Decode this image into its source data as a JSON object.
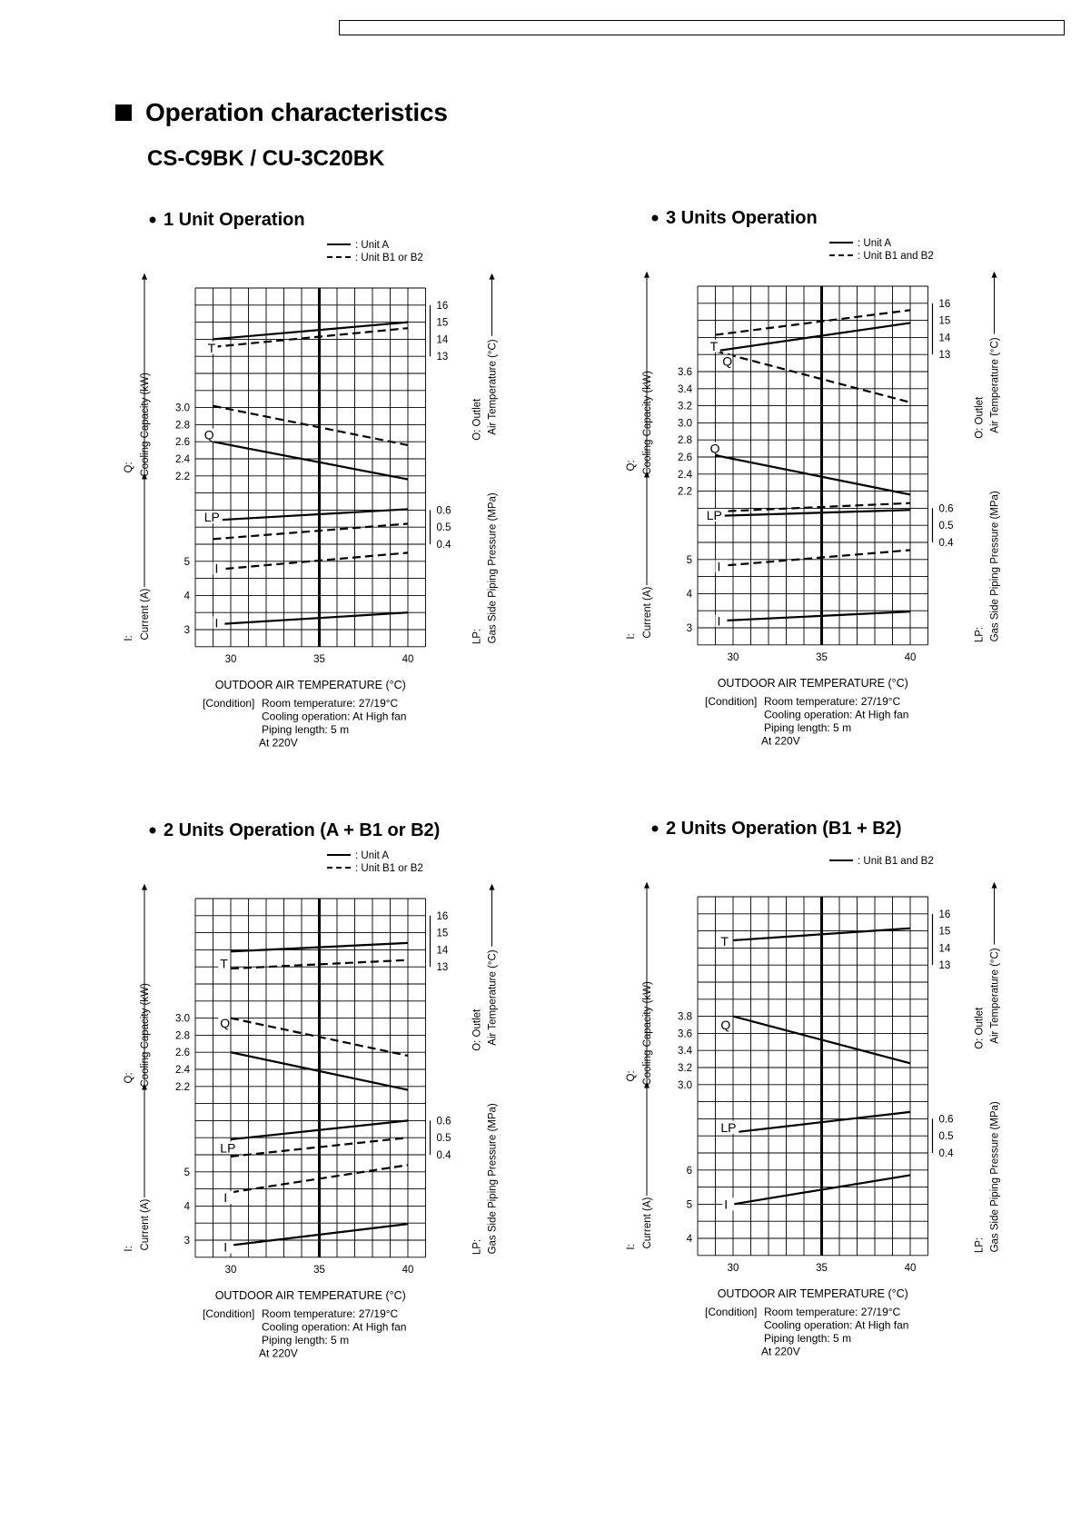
{
  "page": {
    "heading": "Operation characteristics",
    "model": "CS-C9BK / CU-3C20BK"
  },
  "panels": [
    {
      "title": "1 Unit Operation",
      "legend": [
        {
          "style": "solid",
          "label": ": Unit A"
        },
        {
          "style": "dashed",
          "label": ": Unit B1 or B2"
        }
      ],
      "x_label": "OUTDOOR  AIR TEMPERATURE (°C)",
      "x_ticks": [
        "30",
        "35",
        "40"
      ],
      "left_ticks": [
        {
          "text": "3.0",
          "row": 7
        },
        {
          "text": "2.8",
          "row": 8
        },
        {
          "text": "2.6",
          "row": 9
        },
        {
          "text": "2.4",
          "row": 10
        },
        {
          "text": "2.2",
          "row": 11
        },
        {
          "text": "5",
          "row": 16
        },
        {
          "text": "4",
          "row": 18
        },
        {
          "text": "3",
          "row": 20
        }
      ],
      "right_ticks": [
        {
          "text": "16",
          "row": 1
        },
        {
          "text": "15",
          "row": 2
        },
        {
          "text": "14",
          "row": 3
        },
        {
          "text": "13",
          "row": 4
        },
        {
          "text": "0.6",
          "row": 13
        },
        {
          "text": "0.5",
          "row": 14
        },
        {
          "text": "0.4",
          "row": 15
        }
      ],
      "curve_labels": [
        {
          "text": "T",
          "x": 28.7,
          "row": 3.5
        },
        {
          "text": "Q",
          "x": 28.5,
          "row": 8.6
        },
        {
          "text": "LP",
          "x": 28.5,
          "row": 13.4
        },
        {
          "text": "I",
          "x": 29.1,
          "row": 16.4
        },
        {
          "text": "I",
          "x": 29.1,
          "row": 19.6
        }
      ],
      "chart_data": {
        "type": "line",
        "x": [
          29,
          40
        ],
        "xlim": [
          28,
          41
        ],
        "series": [
          {
            "name": "T - Unit A",
            "style": "solid",
            "values": [
              14.3,
              15.0
            ]
          },
          {
            "name": "T - Unit B1 or B2",
            "style": "dashed",
            "values": [
              13.6,
              14.6
            ]
          },
          {
            "name": "Q - Unit A",
            "style": "solid",
            "values": [
              2.6,
              2.18
            ]
          },
          {
            "name": "Q - Unit B1 or B2",
            "style": "dashed",
            "values": [
              3.03,
              2.57
            ]
          },
          {
            "name": "LP - Unit A",
            "style": "solid",
            "values": [
              0.54,
              0.6
            ]
          },
          {
            "name": "LP - Unit B1 or B2",
            "style": "dashed",
            "values": [
              0.43,
              0.52
            ]
          },
          {
            "name": "I - Unit A",
            "style": "solid",
            "values": [
              3.35,
              3.77
            ]
          },
          {
            "name": "I - Unit B1 or B2",
            "style": "dashed",
            "values": [
              4.75,
              5.25
            ]
          }
        ],
        "paths": [
          {
            "style": "solid",
            "r0": 3.0,
            "r1": 2.0
          },
          {
            "style": "dashed",
            "r0": 3.45,
            "r1": 2.35
          },
          {
            "style": "solid",
            "r0": 9.0,
            "r1": 11.2
          },
          {
            "style": "dashed",
            "r0": 6.9,
            "r1": 9.2
          },
          {
            "style": "solid",
            "r0": 13.6,
            "r1": 12.95
          },
          {
            "style": "dashed",
            "r0": 14.7,
            "r1": 13.8
          },
          {
            "style": "solid",
            "r0": 19.7,
            "r1": 19.0
          },
          {
            "style": "dashed",
            "r0": 16.5,
            "r1": 15.5
          }
        ]
      },
      "condition": {
        "prefix": "[Condition]",
        "lines": [
          "Room temperature: 27/19°C",
          "Cooling operation: At High fan",
          "Piping length: 5 m",
          "At 220V"
        ]
      },
      "axis_labels": {
        "q_symbol": "Q:",
        "q_text": "Cooling Capacity (kW)",
        "i_symbol": "I:",
        "i_text": "Current (A)",
        "o_symbol": "O: Outlet",
        "o_text": "Air Temperature (°C)",
        "lp_symbol": "LP:",
        "lp_text": "Gas Side Piping Pressure (MPa)"
      }
    },
    {
      "title": "3 Units Operation",
      "legend": [
        {
          "style": "solid",
          "label": ": Unit A"
        },
        {
          "style": "dashed",
          "label": ": Unit B1 and B2"
        }
      ],
      "x_label": "OUTDOOR  AIR TEMPERATURE (°C)",
      "x_ticks": [
        "30",
        "35",
        "40"
      ],
      "left_ticks": [
        {
          "text": "3.6",
          "row": 5
        },
        {
          "text": "3.4",
          "row": 6
        },
        {
          "text": "3.2",
          "row": 7
        },
        {
          "text": "3.0",
          "row": 8
        },
        {
          "text": "2.8",
          "row": 9
        },
        {
          "text": "2.6",
          "row": 10
        },
        {
          "text": "2.4",
          "row": 11
        },
        {
          "text": "2.2",
          "row": 12
        },
        {
          "text": "5",
          "row": 16
        },
        {
          "text": "4",
          "row": 18
        },
        {
          "text": "3",
          "row": 20
        }
      ],
      "right_ticks": [
        {
          "text": "16",
          "row": 1
        },
        {
          "text": "15",
          "row": 2
        },
        {
          "text": "14",
          "row": 3
        },
        {
          "text": "13",
          "row": 4
        },
        {
          "text": "0.6",
          "row": 13
        },
        {
          "text": "0.5",
          "row": 14
        },
        {
          "text": "0.4",
          "row": 15
        }
      ],
      "curve_labels": [
        {
          "text": "T",
          "x": 28.7,
          "row": 3.5
        },
        {
          "text": "Q",
          "x": 29.4,
          "row": 4.4
        },
        {
          "text": "Q",
          "x": 28.7,
          "row": 9.5
        },
        {
          "text": "LP",
          "x": 28.5,
          "row": 13.4
        },
        {
          "text": "I",
          "x": 29.1,
          "row": 16.4
        },
        {
          "text": "I",
          "x": 29.1,
          "row": 19.6
        }
      ],
      "chart_data": {
        "type": "line",
        "x": [
          29,
          40
        ],
        "xlim": [
          28,
          41
        ],
        "series": [
          {
            "name": "T - Unit A",
            "style": "solid",
            "values": [
              13.7,
              15.0
            ]
          },
          {
            "name": "T - Unit B1 and B2",
            "style": "dashed",
            "values": [
              14.3,
              15.7
            ]
          },
          {
            "name": "Q - Unit A",
            "style": "solid",
            "values": [
              2.62,
              2.17
            ]
          },
          {
            "name": "Q - Unit B1 and B2",
            "style": "dashed",
            "values": [
              3.73,
              3.23
            ]
          },
          {
            "name": "LP - Unit A",
            "style": "solid",
            "values": [
              0.58,
              0.6
            ]
          },
          {
            "name": "LP - Unit B1 and B2",
            "style": "dashed",
            "values": [
              0.61,
              0.63
            ]
          },
          {
            "name": "I - Unit A",
            "style": "solid",
            "values": [
              3.35,
              3.65
            ]
          },
          {
            "name": "I - Unit B1 and B2",
            "style": "dashed",
            "values": [
              4.75,
              5.25
            ]
          }
        ],
        "paths": [
          {
            "style": "solid",
            "r0": 3.8,
            "r1": 2.15
          },
          {
            "style": "dashed",
            "r0": 2.85,
            "r1": 1.4
          },
          {
            "style": "solid",
            "r0": 9.9,
            "r1": 12.2
          },
          {
            "style": "dashed",
            "r0": 3.8,
            "r1": 6.8
          },
          {
            "style": "solid",
            "r0": 13.45,
            "r1": 13.1
          },
          {
            "style": "dashed",
            "r0": 13.2,
            "r1": 12.7
          },
          {
            "style": "solid",
            "r0": 19.6,
            "r1": 19.05
          },
          {
            "style": "dashed",
            "r0": 16.4,
            "r1": 15.45
          }
        ]
      },
      "condition": {
        "prefix": "[Condition]",
        "lines": [
          "Room temperature: 27/19°C",
          "Cooling operation: At High fan",
          "Piping length: 5 m",
          "At 220V"
        ]
      },
      "axis_labels": {
        "q_symbol": "Q:",
        "q_text": "Cooling Capacity (kW)",
        "i_symbol": "I:",
        "i_text": "Current (A)",
        "o_symbol": "O: Outlet",
        "o_text": "Air Temperature (°C)",
        "lp_symbol": "LP:",
        "lp_text": "Gas Side Piping Pressure (MPa)"
      }
    },
    {
      "title": "2 Units Operation (A + B1 or B2)",
      "legend": [
        {
          "style": "solid",
          "label": ": Unit A"
        },
        {
          "style": "dashed",
          "label": ": Unit B1 or B2"
        }
      ],
      "x_label": "OUTDOOR  AIR TEMPERATURE (°C)",
      "x_ticks": [
        "30",
        "35",
        "40"
      ],
      "left_ticks": [
        {
          "text": "3.0",
          "row": 7
        },
        {
          "text": "2.8",
          "row": 8
        },
        {
          "text": "2.6",
          "row": 9
        },
        {
          "text": "2.4",
          "row": 10
        },
        {
          "text": "2.2",
          "row": 11
        },
        {
          "text": "5",
          "row": 16
        },
        {
          "text": "4",
          "row": 18
        },
        {
          "text": "3",
          "row": 20
        }
      ],
      "right_ticks": [
        {
          "text": "16",
          "row": 1
        },
        {
          "text": "15",
          "row": 2
        },
        {
          "text": "14",
          "row": 3
        },
        {
          "text": "13",
          "row": 4
        },
        {
          "text": "0.6",
          "row": 13
        },
        {
          "text": "0.5",
          "row": 14
        },
        {
          "text": "0.4",
          "row": 15
        }
      ],
      "curve_labels": [
        {
          "text": "T",
          "x": 29.4,
          "row": 3.8
        },
        {
          "text": "Q",
          "x": 29.4,
          "row": 7.3
        },
        {
          "text": "LP",
          "x": 29.4,
          "row": 14.6
        },
        {
          "text": "I",
          "x": 29.6,
          "row": 17.5
        },
        {
          "text": "I",
          "x": 29.6,
          "row": 20.4
        }
      ],
      "chart_data": {
        "type": "line",
        "x": [
          30,
          40
        ],
        "xlim": [
          28,
          41
        ],
        "series": [
          {
            "name": "T - Unit A",
            "style": "solid",
            "values": [
              14.0,
              14.5
            ]
          },
          {
            "name": "T - Unit B1 or B2",
            "style": "dashed",
            "values": [
              12.9,
              13.5
            ]
          },
          {
            "name": "Q - Unit A",
            "style": "solid",
            "values": [
              2.6,
              2.17
            ]
          },
          {
            "name": "Q - Unit B1 or B2",
            "style": "dashed",
            "values": [
              3.0,
              2.57
            ]
          },
          {
            "name": "LP - Unit A",
            "style": "solid",
            "values": [
              0.5,
              0.6
            ]
          },
          {
            "name": "LP - Unit B1 or B2",
            "style": "dashed",
            "values": [
              0.39,
              0.5
            ]
          },
          {
            "name": "I - Unit A",
            "style": "solid",
            "values": [
              2.85,
              3.65
            ]
          },
          {
            "name": "I - Unit B1 or B2",
            "style": "dashed",
            "values": [
              4.4,
              5.2
            ]
          }
        ],
        "paths": [
          {
            "style": "solid",
            "r0": 3.1,
            "r1": 2.6
          },
          {
            "style": "dashed",
            "r0": 4.1,
            "r1": 3.6
          },
          {
            "style": "solid",
            "r0": 9.0,
            "r1": 11.2
          },
          {
            "style": "dashed",
            "r0": 7.0,
            "r1": 9.2
          },
          {
            "style": "solid",
            "r0": 14.1,
            "r1": 13.0
          },
          {
            "style": "dashed",
            "r0": 15.1,
            "r1": 14.0
          },
          {
            "style": "solid",
            "r0": 20.3,
            "r1": 19.05
          },
          {
            "style": "dashed",
            "r0": 17.2,
            "r1": 15.6
          }
        ]
      },
      "condition": {
        "prefix": "[Condition]",
        "lines": [
          "Room temperature: 27/19°C",
          "Cooling operation: At High fan",
          "Piping length: 5 m",
          "At 220V"
        ]
      },
      "axis_labels": {
        "q_symbol": "Q:",
        "q_text": "Cooling Capacity (kW)",
        "i_symbol": "I:",
        "i_text": "Current (A)",
        "o_symbol": "O: Outlet",
        "o_text": "Air Temperature (°C)",
        "lp_symbol": "LP:",
        "lp_text": "Gas Side Piping Pressure (MPa)"
      }
    },
    {
      "title": "2 Units Operation (B1 + B2)",
      "legend": [
        {
          "style": "solid",
          "label": ": Unit B1 and B2"
        }
      ],
      "x_label": "OUTDOOR  AIR TEMPERATURE (°C)",
      "x_ticks": [
        "30",
        "35",
        "40"
      ],
      "left_ticks": [
        {
          "text": "3.8",
          "row": 7
        },
        {
          "text": "3.6",
          "row": 8
        },
        {
          "text": "3.4",
          "row": 9
        },
        {
          "text": "3.2",
          "row": 10
        },
        {
          "text": "3.0",
          "row": 11
        },
        {
          "text": "6",
          "row": 16
        },
        {
          "text": "5",
          "row": 18
        },
        {
          "text": "4",
          "row": 20
        }
      ],
      "right_ticks": [
        {
          "text": "16",
          "row": 1
        },
        {
          "text": "15",
          "row": 2
        },
        {
          "text": "14",
          "row": 3
        },
        {
          "text": "13",
          "row": 4
        },
        {
          "text": "0.6",
          "row": 13
        },
        {
          "text": "0.5",
          "row": 14
        },
        {
          "text": "0.4",
          "row": 15
        }
      ],
      "curve_labels": [
        {
          "text": "T",
          "x": 29.3,
          "row": 2.6
        },
        {
          "text": "Q",
          "x": 29.3,
          "row": 7.5
        },
        {
          "text": "LP",
          "x": 29.3,
          "row": 13.5
        },
        {
          "text": "I",
          "x": 29.5,
          "row": 18.0
        }
      ],
      "chart_data": {
        "type": "line",
        "x": [
          30,
          40
        ],
        "xlim": [
          28,
          41
        ],
        "series": [
          {
            "name": "T - Unit B1 and B2",
            "style": "solid",
            "values": [
              14.9,
              15.4
            ]
          },
          {
            "name": "Q - Unit B1 and B2",
            "style": "solid",
            "values": [
              3.8,
              3.25
            ]
          },
          {
            "name": "LP - Unit B1 and B2",
            "style": "solid",
            "values": [
              0.52,
              0.64
            ]
          },
          {
            "name": "I - Unit B1 and B2",
            "style": "solid",
            "values": [
              5.0,
              5.85
            ]
          }
        ],
        "paths": [
          {
            "style": "solid",
            "r0": 2.55,
            "r1": 1.85
          },
          {
            "style": "solid",
            "r0": 7.0,
            "r1": 9.75
          },
          {
            "style": "solid",
            "r0": 13.8,
            "r1": 12.6
          },
          {
            "style": "solid",
            "r0": 18.0,
            "r1": 16.3
          }
        ]
      },
      "condition": {
        "prefix": "[Condition]",
        "lines": [
          "Room temperature: 27/19°C",
          "Cooling operation: At High fan",
          "Piping length: 5 m",
          "At 220V"
        ]
      },
      "axis_labels": {
        "q_symbol": "Q:",
        "q_text": "Cooling Capacity (kW)",
        "i_symbol": "I:",
        "i_text": "Current (A)",
        "o_symbol": "O: Outlet",
        "o_text": "Air Temperature (°C)",
        "lp_symbol": "LP:",
        "lp_text": "Gas Side Piping Pressure (MPa)"
      }
    }
  ]
}
